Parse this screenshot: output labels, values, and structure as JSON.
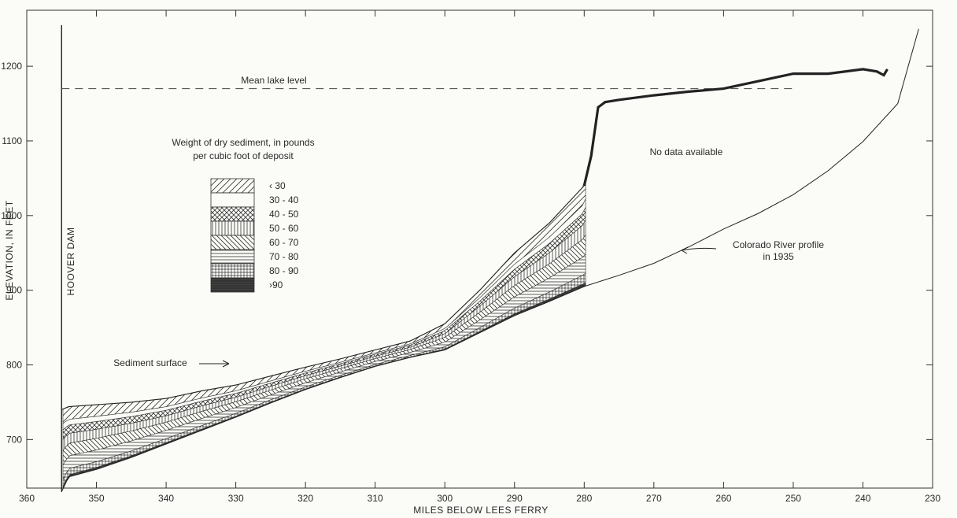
{
  "chart_data": {
    "type": "area",
    "xlabel": "MILES BELOW LEES FERRY",
    "ylabel": "ELEVATION, IN FEET",
    "xlim": [
      360,
      230
    ],
    "ylim": [
      635,
      1275
    ],
    "x_ticks": [
      360,
      350,
      340,
      330,
      320,
      310,
      300,
      290,
      280,
      270,
      260,
      250,
      240,
      230
    ],
    "y_ticks": [
      700,
      800,
      900,
      1000,
      1100,
      1200
    ],
    "grid": false,
    "annotations": {
      "dam": "HOOVER DAM",
      "lake": "Mean lake level",
      "no_data": "No data available",
      "river_line1": "Colorado River profile",
      "river_line2": "in 1935",
      "sediment": "Sediment surface"
    },
    "legend": {
      "title_line1": "Weight of dry sediment, in pounds",
      "title_line2": "per cubic foot of deposit",
      "entries": [
        "‹ 30",
        "30 - 40",
        "40 - 50",
        "50 - 60",
        "60 - 70",
        "70 - 80",
        "80 - 90",
        "›90"
      ],
      "placement": "upper-left"
    },
    "mean_lake_level": 1170,
    "series": [
      {
        "name": "Colorado River profile in 1935",
        "x": [
          355,
          354,
          350,
          345,
          340,
          335,
          330,
          325,
          320,
          315,
          310,
          305,
          300,
          295,
          290,
          285,
          280,
          275,
          270,
          265,
          260,
          255,
          250,
          245,
          240,
          235,
          232
        ],
        "y": [
          630,
          650,
          660,
          676,
          694,
          712,
          730,
          749,
          767,
          783,
          798,
          810,
          820,
          843,
          866,
          885,
          905,
          920,
          936,
          958,
          982,
          1003,
          1028,
          1060,
          1099,
          1150,
          1250
        ]
      },
      {
        "name": "Sediment surface",
        "x": [
          355,
          354,
          345,
          340,
          335,
          330,
          325,
          320,
          315,
          310,
          305,
          300,
          295,
          290,
          285,
          280,
          279,
          278,
          277,
          275,
          270,
          265,
          260,
          255,
          250,
          245,
          240,
          238,
          237,
          236.5
        ],
        "y": [
          740,
          744,
          750,
          755,
          765,
          773,
          785,
          797,
          808,
          820,
          832,
          855,
          900,
          950,
          990,
          1040,
          1080,
          1145,
          1152,
          1155,
          1161,
          1166,
          1170,
          1180,
          1190,
          1190,
          1196,
          1193,
          1188,
          1196
        ]
      }
    ]
  }
}
